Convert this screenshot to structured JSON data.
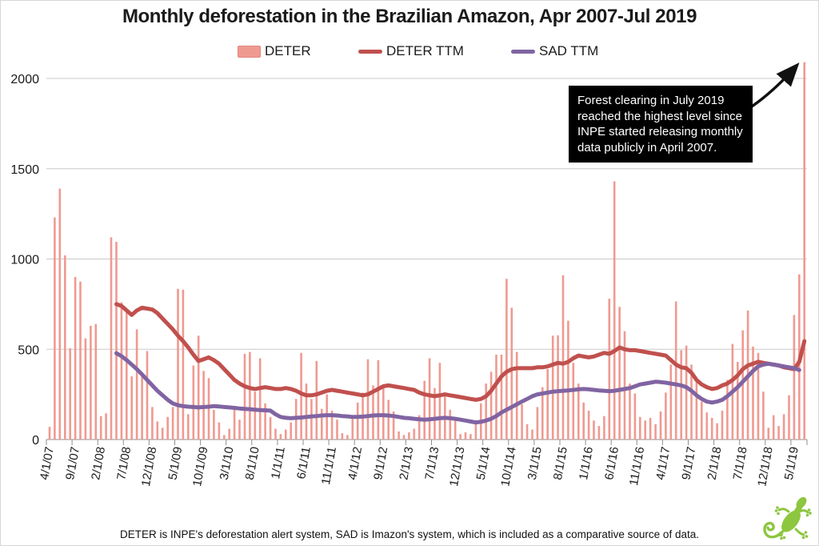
{
  "title": "Monthly deforestation in the Brazilian Amazon, Apr 2007-Jul 2019",
  "legend": {
    "items": [
      {
        "label": "DETER",
        "type": "bar",
        "color": "#EF9A91"
      },
      {
        "label": "DETER TTM",
        "type": "line",
        "color": "#C0504D"
      },
      {
        "label": "SAD TTM",
        "type": "line",
        "color": "#8064A2"
      }
    ]
  },
  "annotation": {
    "text": "Forest clearing in July 2019 reached the highest level since INPE started releasing monthly data publicly in April 2007.",
    "bg_color": "#000000",
    "text_color": "#ffffff"
  },
  "footer": "DETER is INPE's deforestation alert system, SAD is Imazon's system, which is included as a comparative source of data.",
  "logo": {
    "name": "gecko-logo",
    "color": "#8DC63F"
  },
  "chart_data": {
    "type": "bar",
    "x_unit": "month",
    "x_start": "4/1/07",
    "x_end": "7/1/19",
    "grid": "horizontal",
    "legend_position": "top",
    "y_ticks": [
      0,
      500,
      1000,
      1500,
      2000
    ],
    "ylim": [
      0,
      2100
    ],
    "x_tick_labels": [
      "4/1/07",
      "9/1/07",
      "2/1/08",
      "7/1/08",
      "12/1/08",
      "5/1/09",
      "10/1/09",
      "3/1/10",
      "8/1/10",
      "1/1/11",
      "6/1/11",
      "11/1/11",
      "4/1/12",
      "9/1/12",
      "2/1/13",
      "7/1/13",
      "12/1/13",
      "5/1/14",
      "10/1/14",
      "3/1/15",
      "8/1/15",
      "1/1/16",
      "6/1/16",
      "11/1/16",
      "4/1/17",
      "9/1/17",
      "2/1/18",
      "7/1/18",
      "12/1/18",
      "5/1/19"
    ],
    "x_tick_label_step_months": 5,
    "series": [
      {
        "name": "DETER",
        "type": "bar",
        "color": "#EF9A91",
        "values": [
          70,
          1230,
          1390,
          1020,
          505,
          900,
          875,
          560,
          630,
          640,
          130,
          145,
          1120,
          1095,
          760,
          705,
          350,
          610,
          360,
          490,
          180,
          100,
          65,
          125,
          180,
          835,
          830,
          140,
          410,
          575,
          380,
          340,
          165,
          95,
          25,
          60,
          175,
          110,
          475,
          485,
          265,
          450,
          200,
          125,
          60,
          30,
          55,
          95,
          225,
          480,
          310,
          225,
          435,
          170,
          250,
          160,
          110,
          35,
          25,
          115,
          205,
          260,
          445,
          300,
          440,
          285,
          220,
          155,
          45,
          25,
          40,
          60,
          135,
          325,
          450,
          285,
          425,
          260,
          165,
          115,
          30,
          40,
          30,
          85,
          200,
          310,
          375,
          470,
          470,
          890,
          730,
          485,
          195,
          85,
          55,
          180,
          290,
          390,
          575,
          577,
          910,
          658,
          425,
          310,
          205,
          160,
          105,
          75,
          130,
          780,
          1430,
          735,
          600,
          310,
          255,
          125,
          105,
          120,
          85,
          155,
          260,
          415,
          765,
          495,
          520,
          415,
          335,
          210,
          150,
          120,
          90,
          160,
          330,
          530,
          430,
          605,
          715,
          515,
          480,
          265,
          65,
          135,
          75,
          140,
          245,
          690,
          915,
          2090
        ]
      },
      {
        "name": "DETER TTM",
        "type": "line",
        "color": "#C0504D",
        "values": [
          null,
          null,
          null,
          null,
          null,
          null,
          null,
          null,
          null,
          null,
          null,
          null,
          null,
          750,
          740,
          715,
          690,
          715,
          730,
          725,
          720,
          700,
          670,
          640,
          610,
          575,
          545,
          510,
          470,
          435,
          445,
          455,
          440,
          420,
          390,
          360,
          330,
          310,
          295,
          285,
          280,
          285,
          290,
          285,
          280,
          280,
          285,
          280,
          270,
          255,
          245,
          245,
          250,
          260,
          270,
          275,
          270,
          265,
          260,
          255,
          250,
          245,
          250,
          265,
          280,
          295,
          300,
          295,
          290,
          285,
          280,
          275,
          260,
          250,
          245,
          240,
          245,
          250,
          245,
          240,
          235,
          230,
          225,
          220,
          225,
          240,
          270,
          310,
          350,
          375,
          390,
          395,
          395,
          395,
          395,
          400,
          400,
          405,
          415,
          425,
          420,
          430,
          450,
          465,
          460,
          455,
          460,
          470,
          480,
          475,
          490,
          510,
          500,
          495,
          495,
          490,
          485,
          480,
          475,
          470,
          465,
          440,
          415,
          400,
          395,
          370,
          330,
          305,
          290,
          280,
          285,
          300,
          310,
          330,
          355,
          390,
          410,
          420,
          430,
          425,
          420,
          415,
          410,
          400,
          395,
          390,
          430,
          545
        ]
      },
      {
        "name": "SAD TTM",
        "type": "line",
        "color": "#8064A2",
        "values": [
          null,
          null,
          null,
          null,
          null,
          null,
          null,
          null,
          null,
          null,
          null,
          null,
          null,
          478,
          462,
          440,
          415,
          390,
          360,
          330,
          300,
          270,
          245,
          220,
          200,
          190,
          185,
          182,
          180,
          178,
          180,
          182,
          185,
          183,
          180,
          178,
          175,
          172,
          170,
          168,
          165,
          163,
          162,
          160,
          140,
          125,
          120,
          118,
          120,
          122,
          125,
          128,
          130,
          133,
          135,
          135,
          133,
          130,
          128,
          125,
          125,
          127,
          130,
          133,
          135,
          135,
          133,
          130,
          125,
          120,
          118,
          115,
          112,
          110,
          112,
          115,
          118,
          120,
          118,
          115,
          110,
          105,
          100,
          95,
          98,
          105,
          115,
          130,
          150,
          165,
          180,
          195,
          210,
          225,
          240,
          250,
          255,
          260,
          265,
          268,
          270,
          272,
          275,
          278,
          280,
          278,
          275,
          272,
          270,
          268,
          270,
          275,
          280,
          285,
          295,
          305,
          310,
          315,
          320,
          318,
          315,
          310,
          305,
          300,
          290,
          270,
          245,
          225,
          210,
          205,
          210,
          220,
          240,
          265,
          290,
          320,
          350,
          380,
          405,
          415,
          420,
          415,
          410,
          405,
          400,
          395,
          385,
          null
        ]
      }
    ]
  }
}
